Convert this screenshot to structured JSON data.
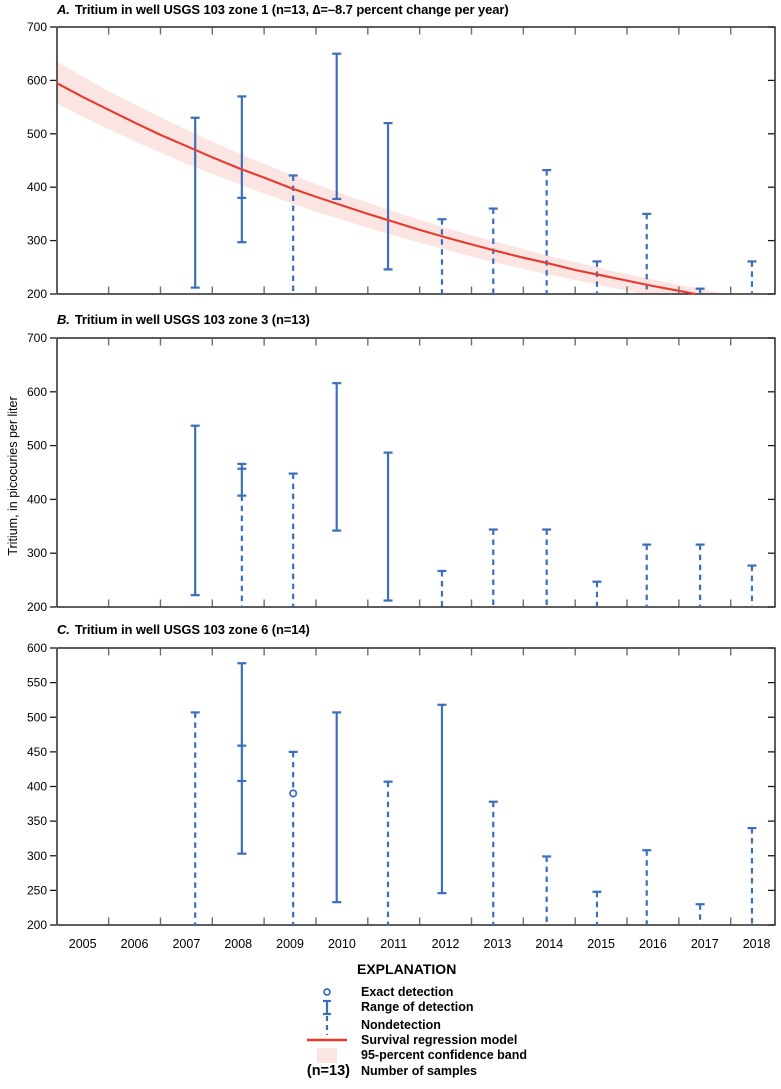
{
  "figure": {
    "y_axis_label": "Tritium, in picocuries per liter"
  },
  "colors": {
    "detection_blue": "#3D6EB8",
    "model_red": "#E8392E",
    "confidence_band_pink": "#FBE5E2",
    "frame": "#1a1a1a",
    "tick_gray": "#6e6e6e",
    "text": "#000000"
  },
  "legend": {
    "title": "EXPLANATION",
    "n_symbol_text": "(n=13)",
    "items": [
      {
        "symbol": "exact-detection-marker",
        "label": "Exact detection"
      },
      {
        "symbol": "range-of-detection-marker",
        "label": "Range of detection"
      },
      {
        "symbol": "nondetection-marker",
        "label": "Nondetection"
      },
      {
        "symbol": "survival-regression-line",
        "label": "Survival regression model"
      },
      {
        "symbol": "confidence-band-swatch",
        "label": "95-percent confidence band"
      },
      {
        "symbol": "number-of-samples",
        "label": "Number of samples"
      }
    ]
  },
  "chart_data": {
    "type": "interval-censored time-series (range/nondetect bars) with survival regression trend",
    "x_axis": {
      "domain": [
        2004.5,
        2018.36
      ],
      "years": [
        2005,
        2006,
        2007,
        2008,
        2009,
        2010,
        2011,
        2012,
        2013,
        2014,
        2015,
        2016,
        2017,
        2018
      ],
      "boundary_ticks": [
        2005.5,
        2006.5,
        2007.5,
        2008.5,
        2009.5,
        2010.5,
        2011.5,
        2012.5,
        2013.5,
        2014.5,
        2015.5,
        2016.5,
        2017.5
      ]
    },
    "y_axis": {
      "label": "Tritium, in picocuries per liter"
    },
    "panels": [
      {
        "id": "A",
        "letter": "A.",
        "title": "Tritium in well USGS 103 zone 1 (n=13, ∆=–8.7 percent change per year)",
        "n": 13,
        "percent_change_per_year": -8.7,
        "ylim": [
          200,
          700
        ],
        "yticks": [
          200,
          300,
          400,
          500,
          600,
          700
        ],
        "marks": [
          {
            "x": 2007.17,
            "solid": [
              212,
              530
            ],
            "caps": [
              212,
              530
            ]
          },
          {
            "x": 2008.07,
            "solid": [
              297,
              570
            ],
            "caps": [
              297,
              380,
              570
            ]
          },
          {
            "x": 2009.06,
            "dashed": [
              200,
              422
            ],
            "caps": [
              422
            ]
          },
          {
            "x": 2009.9,
            "solid": [
              378,
              650
            ],
            "caps": [
              378,
              650
            ]
          },
          {
            "x": 2010.89,
            "solid": [
              246,
              520
            ],
            "caps": [
              246,
              520
            ]
          },
          {
            "x": 2011.93,
            "dashed": [
              200,
              340
            ],
            "caps": [
              340
            ]
          },
          {
            "x": 2012.92,
            "dashed": [
              200,
              360
            ],
            "caps": [
              360
            ]
          },
          {
            "x": 2013.95,
            "dashed": [
              200,
              432
            ],
            "caps": [
              432
            ]
          },
          {
            "x": 2014.92,
            "dashed": [
              200,
              261
            ],
            "caps": [
              261
            ]
          },
          {
            "x": 2015.88,
            "dashed": [
              200,
              350
            ],
            "caps": [
              350
            ]
          },
          {
            "x": 2016.91,
            "dashed": [
              200,
              210
            ],
            "caps": [
              210
            ]
          },
          {
            "x": 2017.91,
            "dashed": [
              200,
              261
            ],
            "caps": [
              261
            ]
          }
        ],
        "trend": [
          [
            2004.5,
            595
          ],
          [
            2005,
            569
          ],
          [
            2005.5,
            545
          ],
          [
            2006,
            521
          ],
          [
            2006.5,
            498
          ],
          [
            2007,
            477
          ],
          [
            2007.5,
            456
          ],
          [
            2008,
            436
          ],
          [
            2008.5,
            418
          ],
          [
            2009,
            399
          ],
          [
            2009.5,
            382
          ],
          [
            2010,
            366
          ],
          [
            2010.5,
            350
          ],
          [
            2011,
            335
          ],
          [
            2011.5,
            320
          ],
          [
            2012,
            306
          ],
          [
            2012.5,
            293
          ],
          [
            2013,
            280
          ],
          [
            2013.5,
            268
          ],
          [
            2014,
            257
          ],
          [
            2014.5,
            245
          ],
          [
            2015,
            235
          ],
          [
            2015.5,
            225
          ],
          [
            2016,
            215
          ],
          [
            2016.5,
            206
          ],
          [
            2016.82,
            200
          ]
        ],
        "band_upper": [
          [
            2004.5,
            635
          ],
          [
            2005,
            607
          ],
          [
            2005.5,
            580
          ],
          [
            2006,
            555
          ],
          [
            2006.5,
            531
          ],
          [
            2007,
            508
          ],
          [
            2007.5,
            485
          ],
          [
            2008,
            464
          ],
          [
            2008.5,
            444
          ],
          [
            2009,
            424
          ],
          [
            2009.5,
            406
          ],
          [
            2010,
            388
          ],
          [
            2010.5,
            371
          ],
          [
            2011,
            355
          ],
          [
            2011.5,
            339
          ],
          [
            2012,
            324
          ],
          [
            2012.5,
            310
          ],
          [
            2013,
            297
          ],
          [
            2013.5,
            284
          ],
          [
            2014,
            271
          ],
          [
            2014.5,
            260
          ],
          [
            2015,
            248
          ],
          [
            2015.5,
            237
          ],
          [
            2016,
            227
          ],
          [
            2016.5,
            217
          ],
          [
            2017,
            208
          ],
          [
            2017.41,
            200
          ]
        ],
        "band_lower": [
          [
            2004.5,
            557
          ],
          [
            2005,
            532
          ],
          [
            2005.5,
            509
          ],
          [
            2006,
            486
          ],
          [
            2006.5,
            465
          ],
          [
            2007,
            444
          ],
          [
            2007.5,
            425
          ],
          [
            2008,
            406
          ],
          [
            2008.5,
            388
          ],
          [
            2009,
            371
          ],
          [
            2009.5,
            354
          ],
          [
            2010,
            339
          ],
          [
            2010.5,
            324
          ],
          [
            2011,
            310
          ],
          [
            2011.5,
            296
          ],
          [
            2012,
            283
          ],
          [
            2012.5,
            270
          ],
          [
            2013,
            258
          ],
          [
            2013.5,
            247
          ],
          [
            2014,
            236
          ],
          [
            2014.5,
            226
          ],
          [
            2015,
            216
          ],
          [
            2015.5,
            206
          ],
          [
            2015.81,
            200
          ]
        ]
      },
      {
        "id": "B",
        "letter": "B.",
        "title": "Tritium in well USGS 103 zone 3 (n=13)",
        "n": 13,
        "ylim": [
          200,
          700
        ],
        "yticks": [
          200,
          300,
          400,
          500,
          600,
          700
        ],
        "marks": [
          {
            "x": 2007.17,
            "solid": [
              222,
              537
            ],
            "caps": [
              222,
              537
            ]
          },
          {
            "x": 2008.07,
            "solid": [
              407,
              466
            ],
            "dashed": [
              200,
              407
            ],
            "caps": [
              407,
              457,
              466
            ]
          },
          {
            "x": 2009.06,
            "dashed": [
              200,
              448
            ],
            "caps": [
              448
            ]
          },
          {
            "x": 2009.9,
            "solid": [
              342,
              616
            ],
            "caps": [
              342,
              616
            ]
          },
          {
            "x": 2010.89,
            "solid": [
              212,
              487
            ],
            "caps": [
              212,
              487
            ]
          },
          {
            "x": 2011.93,
            "dashed": [
              200,
              267
            ],
            "caps": [
              267
            ]
          },
          {
            "x": 2012.92,
            "dashed": [
              200,
              344
            ],
            "caps": [
              344
            ]
          },
          {
            "x": 2013.95,
            "dashed": [
              200,
              344
            ],
            "caps": [
              344
            ]
          },
          {
            "x": 2014.92,
            "dashed": [
              200,
              247
            ],
            "caps": [
              247
            ]
          },
          {
            "x": 2015.88,
            "dashed": [
              200,
              316
            ],
            "caps": [
              316
            ]
          },
          {
            "x": 2016.91,
            "dashed": [
              200,
              316
            ],
            "caps": [
              316
            ]
          },
          {
            "x": 2017.91,
            "dashed": [
              200,
              277
            ],
            "caps": [
              277
            ]
          }
        ]
      },
      {
        "id": "C",
        "letter": "C.",
        "title": "Tritium in well USGS 103 zone 6 (n=14)",
        "n": 14,
        "ylim": [
          200,
          600
        ],
        "yticks": [
          200,
          250,
          300,
          350,
          400,
          450,
          500,
          550,
          600
        ],
        "marks": [
          {
            "x": 2007.17,
            "dashed": [
              200,
              507
            ],
            "caps": [
              507
            ]
          },
          {
            "x": 2008.07,
            "solid": [
              303,
              578
            ],
            "caps": [
              303,
              408,
              459,
              578
            ]
          },
          {
            "x": 2009.06,
            "dashed": [
              200,
              450
            ],
            "caps": [
              450
            ],
            "circle": 390
          },
          {
            "x": 2009.9,
            "solid": [
              233,
              507
            ],
            "caps": [
              233,
              507
            ]
          },
          {
            "x": 2010.89,
            "dashed": [
              200,
              407
            ],
            "caps": [
              407
            ]
          },
          {
            "x": 2011.93,
            "solid": [
              246,
              518
            ],
            "caps": [
              246,
              518
            ]
          },
          {
            "x": 2012.92,
            "dashed": [
              200,
              378
            ],
            "caps": [
              378
            ]
          },
          {
            "x": 2013.95,
            "dashed": [
              200,
              299
            ],
            "caps": [
              299
            ]
          },
          {
            "x": 2014.92,
            "dashed": [
              200,
              248
            ],
            "caps": [
              248
            ]
          },
          {
            "x": 2015.88,
            "dashed": [
              200,
              308
            ],
            "caps": [
              308
            ]
          },
          {
            "x": 2016.91,
            "dashed": [
              200,
              230
            ],
            "caps": [
              230
            ]
          },
          {
            "x": 2017.91,
            "dashed": [
              200,
              340
            ],
            "caps": [
              340
            ]
          }
        ]
      }
    ]
  }
}
